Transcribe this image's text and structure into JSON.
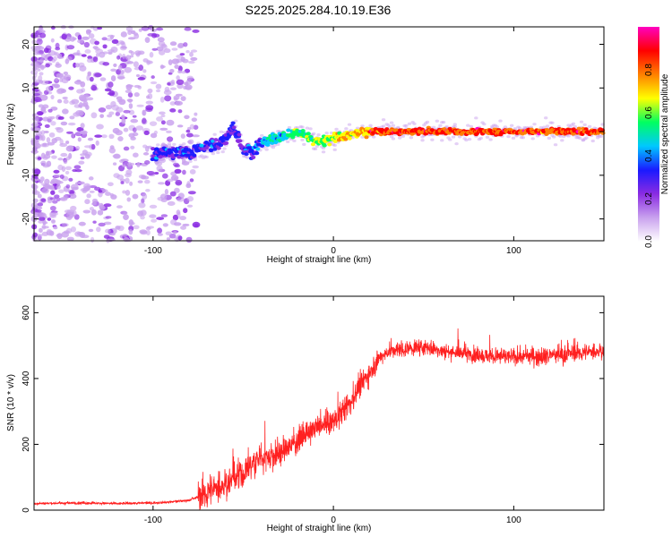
{
  "title": "S225.2025.284.10.19.E36",
  "chart_data": [
    {
      "type": "heatmap",
      "xlabel": "Height of straight line (km)",
      "ylabel": "Frequency (Hz)",
      "xlim": [
        -166,
        150
      ],
      "ylim": [
        -25,
        24
      ],
      "xticks": [
        -100,
        0,
        100
      ],
      "yticks": [
        -20,
        -10,
        0,
        10,
        20
      ],
      "ridge": {
        "x": [
          -100,
          -90,
          -80,
          -70,
          -60,
          -55,
          -50,
          -45,
          -40,
          -30,
          -20,
          -15,
          -10,
          -5,
          0,
          10,
          20,
          30,
          50,
          70,
          100,
          150
        ],
        "y": [
          -5,
          -5,
          -4.5,
          -3.5,
          -2,
          1,
          -4,
          -4,
          -2.5,
          -1.5,
          0,
          -1,
          -2,
          -2,
          -1.5,
          -0.5,
          0,
          0,
          0,
          0,
          0,
          0
        ]
      },
      "colorbar": {
        "label": "Normalized spectral amplitude",
        "ticks": [
          0.0,
          0.2,
          0.4,
          0.6,
          0.8
        ],
        "range": [
          0,
          1
        ],
        "colormap": [
          "#ffffff",
          "#c9a2ee",
          "#8a2be2",
          "#1a1aff",
          "#00c8ff",
          "#00ff60",
          "#ffff00",
          "#ff8000",
          "#ff0000",
          "#ff00c0"
        ]
      },
      "grid": false
    },
    {
      "type": "line",
      "xlabel": "Height of straight line (km)",
      "ylabel": "SNR (10 * v/v)",
      "xlim": [
        -166,
        150
      ],
      "ylim": [
        0,
        650
      ],
      "xticks": [
        -100,
        0,
        100
      ],
      "yticks": [
        0,
        200,
        400,
        600
      ],
      "series": [
        {
          "color": "#ff2020",
          "x": [
            -166,
            -140,
            -120,
            -100,
            -90,
            -80,
            -75,
            -70,
            -60,
            -50,
            -45,
            -40,
            -30,
            -20,
            -10,
            0,
            5,
            10,
            15,
            20,
            25,
            30,
            40,
            50,
            60,
            80,
            100,
            120,
            140,
            150
          ],
          "y": [
            20,
            22,
            20,
            22,
            25,
            30,
            40,
            55,
            80,
            110,
            140,
            160,
            170,
            210,
            250,
            270,
            300,
            330,
            380,
            420,
            460,
            480,
            490,
            495,
            485,
            470,
            465,
            470,
            480,
            485
          ]
        }
      ],
      "grid": false
    }
  ]
}
